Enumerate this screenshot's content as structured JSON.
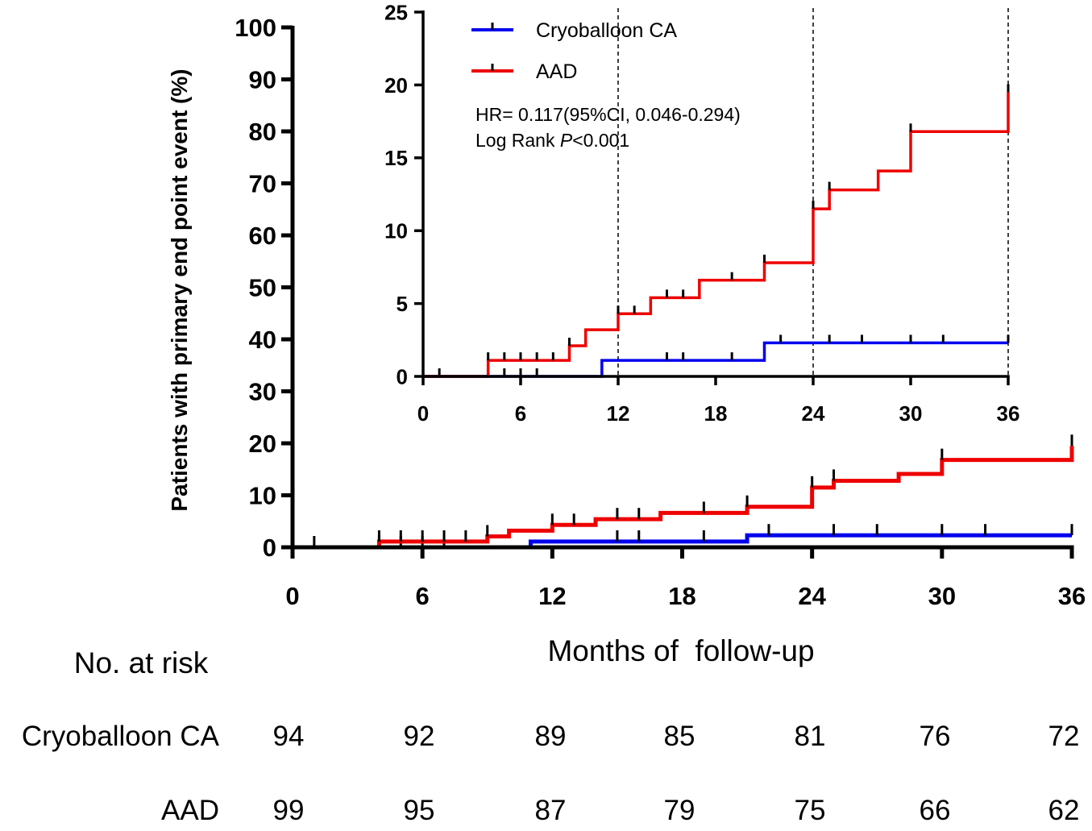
{
  "chart_data": {
    "type": "line",
    "subtype": "kaplan-meier-cumulative-incidence",
    "ylabel": "Patients with primary end point event (%)",
    "xlabel": "Months of  follow-up",
    "main": {
      "xlim": [
        0,
        36
      ],
      "ylim": [
        0,
        100
      ],
      "xticks": [
        "0",
        "6",
        "12",
        "18",
        "24",
        "30",
        "36"
      ],
      "yticks": [
        "0",
        "10",
        "20",
        "30",
        "40",
        "50",
        "60",
        "70",
        "80",
        "90",
        "100"
      ]
    },
    "inset": {
      "xlim": [
        0,
        36
      ],
      "ylim": [
        0,
        25
      ],
      "xticks": [
        "0",
        "6",
        "12",
        "18",
        "24",
        "30",
        "36"
      ],
      "yticks": [
        "0",
        "5",
        "10",
        "15",
        "20",
        "25"
      ],
      "reference_lines_x": [
        12,
        24,
        36
      ]
    },
    "legend": {
      "placement": "top (inset)",
      "items": [
        "Cryoballoon CA",
        "AAD"
      ]
    },
    "annotations": {
      "hr": "HR= 0.117(95%CI, 0.046-0.294)",
      "logrank_prefix": "Log Rank ",
      "logrank_p": "P",
      "logrank_suffix": "<0.001"
    },
    "series": [
      {
        "name": "Cryoballoon CA",
        "color": "#0000ee",
        "steps": [
          [
            0,
            0
          ],
          [
            11,
            1.1
          ],
          [
            21,
            2.3
          ],
          [
            36,
            2.3
          ]
        ],
        "censored": [
          1,
          4,
          5,
          6,
          7,
          15,
          16,
          19,
          22,
          25,
          27,
          30,
          32,
          36
        ]
      },
      {
        "name": "AAD",
        "color": "#ee0000",
        "steps": [
          [
            0,
            0
          ],
          [
            4,
            1.1
          ],
          [
            9,
            2.1
          ],
          [
            10,
            3.2
          ],
          [
            12,
            4.3
          ],
          [
            14,
            5.4
          ],
          [
            17,
            6.6
          ],
          [
            21,
            7.8
          ],
          [
            24,
            11.5
          ],
          [
            25,
            12.8
          ],
          [
            28,
            14.1
          ],
          [
            30,
            16.8
          ],
          [
            36,
            19.5
          ]
        ],
        "censored": [
          4,
          5,
          6,
          7,
          8,
          9,
          12,
          13,
          15,
          16,
          19,
          21,
          24,
          25,
          30,
          36
        ]
      }
    ],
    "risk_table": {
      "title": "No. at risk",
      "times": [
        0,
        6,
        12,
        18,
        24,
        30,
        36
      ],
      "rows": [
        {
          "label": "Cryoballoon CA",
          "values": [
            "94",
            "92",
            "89",
            "85",
            "81",
            "76",
            "72"
          ]
        },
        {
          "label": "AAD",
          "values": [
            "99",
            "95",
            "87",
            "79",
            "75",
            "66",
            "62"
          ]
        }
      ]
    }
  }
}
